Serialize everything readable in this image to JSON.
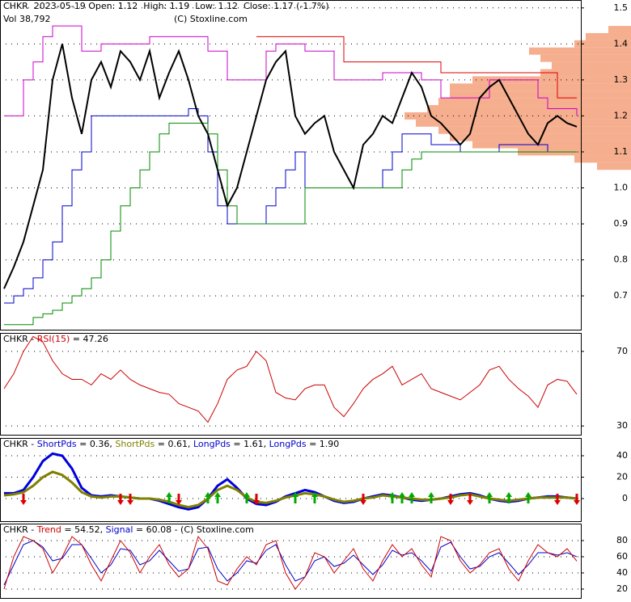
{
  "chart_data": [
    {
      "type": "price",
      "label_parts": [
        {
          "text": "CHKR  2023-05-19 Open: 1.12  High: 1.19  Low: 1.12  Close: 1.17 (-1.7%)",
          "color": "#000000"
        }
      ],
      "volume_label": "Vol 38,792",
      "copyright": "(C) Stoxline.com",
      "ylim": [
        0.606,
        1.522
      ],
      "yticks": [
        0.7,
        0.8,
        0.9,
        {
          "value": 1,
          "label": "1.0"
        },
        1.1,
        1.2,
        1.3,
        1.4,
        1.5
      ],
      "grid": true,
      "profile": {
        "color": "#f4a582",
        "levels": [
          1.06,
          1.08,
          1.1,
          1.12,
          1.14,
          1.16,
          1.18,
          1.2,
          1.22,
          1.24,
          1.26,
          1.28,
          1.3,
          1.32,
          1.34,
          1.36,
          1.38,
          1.4,
          1.42,
          1.44
        ],
        "values": [
          15,
          25,
          50,
          70,
          80,
          85,
          95,
          100,
          90,
          85,
          80,
          80,
          70,
          40,
          35,
          40,
          45,
          25,
          20,
          10
        ]
      },
      "series": [
        {
          "color": "#cc00cc",
          "step": true,
          "values": [
            1.2,
            1.2,
            1.3,
            1.35,
            1.42,
            1.45,
            1.45,
            1.45,
            1.38,
            1.38,
            1.4,
            1.4,
            1.4,
            1.4,
            1.4,
            1.42,
            1.42,
            1.42,
            1.42,
            1.42,
            1.42,
            1.38,
            1.38,
            1.3,
            1.3,
            1.3,
            1.3,
            1.38,
            1.4,
            1.4,
            1.4,
            1.38,
            1.38,
            1.38,
            1.3,
            1.3,
            1.3,
            1.3,
            1.3,
            1.32,
            1.32,
            1.32,
            1.32,
            1.3,
            1.3,
            1.25,
            1.25,
            1.25,
            1.25,
            1.25,
            1.3,
            1.3,
            1.3,
            1.3,
            1.3,
            1.25,
            1.22,
            1.22,
            1.22,
            1.2
          ]
        },
        {
          "color": "#dd0000",
          "step": true,
          "values": [
            null,
            null,
            null,
            null,
            null,
            null,
            null,
            null,
            null,
            null,
            null,
            null,
            null,
            null,
            null,
            null,
            null,
            null,
            null,
            null,
            null,
            null,
            null,
            null,
            null,
            null,
            1.42,
            1.42,
            1.42,
            1.42,
            1.42,
            1.42,
            1.42,
            1.42,
            1.42,
            1.35,
            1.35,
            1.35,
            1.35,
            1.35,
            1.35,
            1.35,
            1.35,
            1.35,
            1.35,
            1.32,
            1.32,
            1.32,
            1.32,
            1.32,
            1.32,
            1.32,
            1.32,
            1.32,
            1.32,
            1.32,
            1.32,
            1.25,
            1.25,
            1.25
          ]
        },
        {
          "color": "#0000cc",
          "step": true,
          "values": [
            0.68,
            0.7,
            0.72,
            0.75,
            0.8,
            0.85,
            0.95,
            1.05,
            1.1,
            1.2,
            1.2,
            1.2,
            1.2,
            1.2,
            1.2,
            1.2,
            1.2,
            1.2,
            1.2,
            1.22,
            1.2,
            1.1,
            0.95,
            0.9,
            0.9,
            0.9,
            0.9,
            0.95,
            1,
            1.05,
            1.1,
            1,
            1,
            1,
            1,
            1,
            1,
            1,
            1,
            1.05,
            1.1,
            1.15,
            1.15,
            1.15,
            1.12,
            1.12,
            1.12,
            1.1,
            1.1,
            1.1,
            1.1,
            1.12,
            1.12,
            1.12,
            1.12,
            1.12,
            1.1,
            1.1,
            1.1,
            1.1
          ]
        },
        {
          "color": "#008800",
          "step": true,
          "values": [
            0.62,
            0.62,
            0.62,
            0.64,
            0.65,
            0.66,
            0.68,
            0.7,
            0.72,
            0.75,
            0.8,
            0.88,
            0.95,
            1,
            1.05,
            1.1,
            1.15,
            1.18,
            1.18,
            1.18,
            1.18,
            1.15,
            1.05,
            0.95,
            0.9,
            0.9,
            0.9,
            0.9,
            0.9,
            0.9,
            0.9,
            1,
            1,
            1,
            1,
            1,
            1,
            1,
            1,
            1,
            1,
            1.05,
            1.08,
            1.1,
            1.1,
            1.1,
            1.1,
            1.1,
            1.1,
            1.1,
            1.1,
            1.1,
            1.1,
            1.1,
            1.1,
            1.1,
            1.1,
            1.1,
            1.1,
            1.1
          ]
        },
        {
          "color": "#000000",
          "width": 2,
          "values": [
            0.72,
            0.78,
            0.85,
            0.95,
            1.05,
            1.3,
            1.4,
            1.25,
            1.15,
            1.3,
            1.35,
            1.28,
            1.38,
            1.35,
            1.3,
            1.38,
            1.25,
            1.32,
            1.38,
            1.3,
            1.2,
            1.15,
            1.05,
            0.95,
            1,
            1.1,
            1.2,
            1.3,
            1.35,
            1.38,
            1.2,
            1.15,
            1.18,
            1.2,
            1.1,
            1.05,
            1,
            1.12,
            1.15,
            1.2,
            1.18,
            1.25,
            1.32,
            1.28,
            1.2,
            1.18,
            1.15,
            1.12,
            1.15,
            1.25,
            1.28,
            1.3,
            1.25,
            1.2,
            1.15,
            1.12,
            1.18,
            1.2,
            1.18,
            1.17
          ]
        }
      ]
    },
    {
      "type": "line",
      "label_parts": [
        {
          "text": "CHKR - ",
          "color": "#000000"
        },
        {
          "text": "RSI(15)",
          "color": "#cc0000"
        },
        {
          "text": " = 47.26",
          "color": "#000000"
        }
      ],
      "ylim": [
        25.3,
        79.9
      ],
      "yticks": [
        30,
        70
      ],
      "grid": true,
      "series": [
        {
          "color": "#cc0000",
          "values": [
            50,
            58,
            70,
            78,
            75,
            65,
            58,
            55,
            55,
            52,
            58,
            55,
            60,
            55,
            52,
            50,
            48,
            47,
            42,
            40,
            38,
            32,
            42,
            55,
            60,
            62,
            70,
            65,
            48,
            45,
            44,
            50,
            52,
            52,
            40,
            35,
            42,
            50,
            55,
            58,
            62,
            52,
            55,
            58,
            50,
            48,
            46,
            44,
            48,
            52,
            60,
            62,
            55,
            50,
            46,
            40,
            52,
            55,
            54,
            47
          ]
        }
      ]
    },
    {
      "type": "line",
      "label_parts": [
        {
          "text": "CHKR - ",
          "color": "#000000"
        },
        {
          "text": "ShortPds",
          "color": "#0000cc"
        },
        {
          "text": " = 0.36, ",
          "color": "#000000"
        },
        {
          "text": "ShortPds",
          "color": "#808000"
        },
        {
          "text": " = 0.61, ",
          "color": "#000000"
        },
        {
          "text": "LongPds",
          "color": "#0000cc"
        },
        {
          "text": " = 1.61, ",
          "color": "#000000"
        },
        {
          "text": "LongPds",
          "color": "#0000cc"
        },
        {
          "text": " = 1.90",
          "color": "#000000"
        }
      ],
      "ylim": [
        -21.1,
        56.6
      ],
      "yticks": [
        0,
        20,
        40
      ],
      "grid": true,
      "series": [
        {
          "color": "#0000dd",
          "width": 3,
          "values": [
            5,
            5,
            8,
            20,
            35,
            42,
            40,
            28,
            10,
            3,
            2,
            3,
            2,
            1,
            0,
            0,
            -2,
            -5,
            -8,
            -10,
            -8,
            0,
            12,
            18,
            10,
            0,
            -5,
            -6,
            -3,
            2,
            5,
            8,
            6,
            2,
            -2,
            -4,
            -3,
            0,
            2,
            4,
            3,
            1,
            -1,
            -2,
            -1,
            0,
            2,
            4,
            5,
            3,
            0,
            -2,
            -3,
            -2,
            0,
            1,
            2,
            2,
            1,
            0
          ]
        },
        {
          "color": "#808000",
          "width": 3,
          "values": [
            3,
            4,
            6,
            12,
            20,
            25,
            22,
            15,
            6,
            2,
            1,
            2,
            2,
            1,
            0,
            0,
            -1,
            -3,
            -6,
            -8,
            -6,
            0,
            8,
            12,
            8,
            1,
            -3,
            -4,
            -2,
            1,
            3,
            5,
            4,
            2,
            -1,
            -3,
            -2,
            0,
            1,
            3,
            2,
            1,
            0,
            -1,
            -1,
            0,
            1,
            3,
            4,
            2,
            0,
            -1,
            -2,
            -1,
            0,
            1,
            1,
            1,
            1,
            0
          ]
        }
      ],
      "signals": [
        {
          "index": 2,
          "dir": "down"
        },
        {
          "index": 12,
          "dir": "down"
        },
        {
          "index": 13,
          "dir": "down"
        },
        {
          "index": 17,
          "dir": "up"
        },
        {
          "index": 18,
          "dir": "down"
        },
        {
          "index": 21,
          "dir": "up"
        },
        {
          "index": 22,
          "dir": "up"
        },
        {
          "index": 25,
          "dir": "up"
        },
        {
          "index": 26,
          "dir": "down"
        },
        {
          "index": 30,
          "dir": "up"
        },
        {
          "index": 32,
          "dir": "up"
        },
        {
          "index": 37,
          "dir": "down"
        },
        {
          "index": 40,
          "dir": "up"
        },
        {
          "index": 41,
          "dir": "up"
        },
        {
          "index": 42,
          "dir": "up"
        },
        {
          "index": 44,
          "dir": "up"
        },
        {
          "index": 46,
          "dir": "down"
        },
        {
          "index": 48,
          "dir": "down"
        },
        {
          "index": 50,
          "dir": "up"
        },
        {
          "index": 52,
          "dir": "up"
        },
        {
          "index": 54,
          "dir": "up"
        },
        {
          "index": 57,
          "dir": "down"
        },
        {
          "index": 59,
          "dir": "down"
        }
      ]
    },
    {
      "type": "line",
      "label_parts": [
        {
          "text": "CHKR - ",
          "color": "#000000"
        },
        {
          "text": "Trend",
          "color": "#cc0000"
        },
        {
          "text": " = 54.52, ",
          "color": "#000000"
        },
        {
          "text": "Signal",
          "color": "#0000cc"
        },
        {
          "text": " = 60.08 - (C) Stoxline.com",
          "color": "#000000"
        }
      ],
      "ylim": [
        9,
        101
      ],
      "yticks": [
        20,
        40,
        60,
        80
      ],
      "grid": true,
      "series": [
        {
          "color": "#0000cc",
          "values": [
            25,
            50,
            75,
            80,
            72,
            55,
            58,
            75,
            75,
            58,
            40,
            50,
            70,
            68,
            50,
            55,
            68,
            55,
            42,
            45,
            70,
            72,
            45,
            30,
            40,
            55,
            52,
            68,
            75,
            50,
            30,
            35,
            55,
            60,
            48,
            52,
            62,
            50,
            38,
            50,
            68,
            62,
            65,
            55,
            42,
            72,
            78,
            60,
            45,
            48,
            60,
            65,
            52,
            38,
            50,
            65,
            65,
            62,
            65,
            60.08
          ]
        },
        {
          "color": "#cc0000",
          "values": [
            20,
            60,
            85,
            80,
            70,
            40,
            60,
            85,
            75,
            50,
            30,
            55,
            80,
            65,
            40,
            60,
            75,
            50,
            35,
            45,
            85,
            70,
            30,
            25,
            45,
            60,
            50,
            75,
            80,
            40,
            20,
            35,
            65,
            60,
            40,
            55,
            70,
            45,
            30,
            55,
            75,
            60,
            70,
            50,
            35,
            85,
            80,
            55,
            40,
            50,
            65,
            70,
            45,
            30,
            55,
            75,
            65,
            60,
            70,
            54.52
          ]
        }
      ]
    }
  ]
}
